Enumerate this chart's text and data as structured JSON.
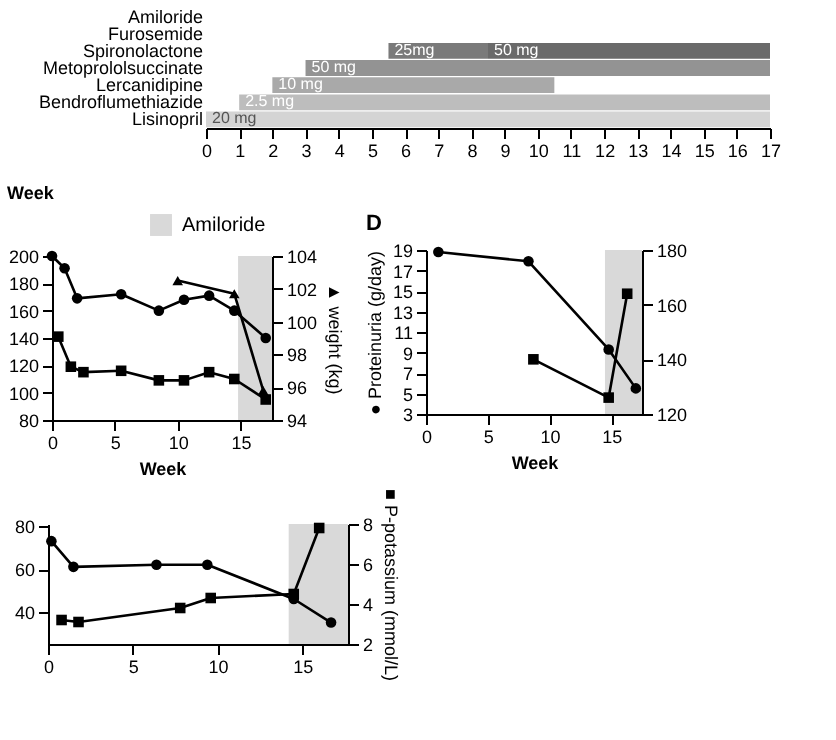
{
  "chart_data": [
    {
      "type": "bar",
      "orientation": "horizontal",
      "categories": [
        "Amiloride",
        "Furosemide",
        "Spironolactone",
        "Metoprololsuccinate",
        "Lercanidipine",
        "Bendroflumethiazide",
        "Lisinopril"
      ],
      "xlabel": "Week",
      "xlim": [
        0,
        17
      ],
      "xticks": [
        0,
        1,
        2,
        3,
        4,
        5,
        6,
        7,
        8,
        9,
        10,
        11,
        12,
        13,
        14,
        15,
        16,
        17
      ],
      "grid": false,
      "series": [
        {
          "values": [
            null,
            null,
            3,
            14,
            8.5,
            16,
            17
          ],
          "base": [
            null,
            null,
            5.5,
            3,
            2,
            1,
            0
          ],
          "colors": [
            null,
            null,
            "#7a7a7a",
            "#939393",
            "#a9a9a9",
            "#bdbdbd",
            "#d4d4d4"
          ]
        },
        {
          "values": [
            null,
            null,
            8.5,
            null,
            null,
            null,
            null
          ],
          "base": [
            null,
            null,
            8.5,
            null,
            null,
            null,
            null
          ],
          "color": "#6a6a6a"
        }
      ],
      "annotations": [
        {
          "text": "25mg",
          "x": 5.5,
          "y": "Spironolactone"
        },
        {
          "text": "50 mg",
          "x": 8.5,
          "y": "Spironolactone"
        },
        {
          "text": "50 mg",
          "x": 3,
          "y": "Metoprololsuccinate"
        },
        {
          "text": "10 mg",
          "x": 2,
          "y": "Lercanidipine"
        },
        {
          "text": "2.5 mg",
          "x": 1,
          "y": "Bendroflumethiazide"
        },
        {
          "text": "20 mg",
          "x": 0,
          "y": "Lisinopril"
        }
      ]
    },
    {
      "type": "line",
      "xlabel": "Week",
      "y2label": "▲ weight (kg)",
      "xlim": [
        0,
        17.5
      ],
      "xticks": [
        0,
        5,
        10,
        15
      ],
      "ylim": [
        80,
        200
      ],
      "yticks": [
        80,
        100,
        120,
        140,
        160,
        180,
        200
      ],
      "y2lim": [
        94,
        104
      ],
      "y2ticks": [
        94,
        96,
        98,
        100,
        102,
        104
      ],
      "grid": false,
      "legend": "top right",
      "bands": [
        {
          "axis": "x",
          "from": 14.8,
          "to": 17.5,
          "label": "Amiloride",
          "color": "#d9d9d9"
        }
      ],
      "series": [
        {
          "color": "#000000",
          "marker": "circle",
          "x": [
            0,
            1,
            2,
            5.5,
            8.5,
            10.5,
            12.5,
            14.5,
            17
          ],
          "values": [
            200,
            191,
            169,
            172,
            160,
            168,
            171,
            160,
            140
          ]
        },
        {
          "color": "#000000",
          "marker": "square",
          "x": [
            0.5,
            1.5,
            2.5,
            5.5,
            8.5,
            10.5,
            12.5,
            14.5,
            17
          ],
          "values": [
            141,
            119,
            115,
            116,
            109,
            109,
            115,
            110,
            95
          ]
        },
        {
          "color": "#000000",
          "marker": "triangle",
          "axis": "y2",
          "x": [
            10,
            14.5,
            16.8
          ],
          "values": [
            102.5,
            101.7,
            95.8
          ]
        }
      ]
    },
    {
      "type": "line",
      "title": "D",
      "xlabel": "Week",
      "ylabel": "● Proteinuria (g/day)",
      "xlim": [
        0,
        17.5
      ],
      "xticks": [
        0,
        5,
        10,
        15
      ],
      "ylim": [
        3,
        19
      ],
      "yticks": [
        3,
        5,
        7,
        9,
        11,
        13,
        15,
        17,
        19
      ],
      "y2lim": [
        120,
        180
      ],
      "y2ticks": [
        120,
        140,
        160,
        180
      ],
      "grid": false,
      "bands": [
        {
          "axis": "x",
          "from": 14.5,
          "to": 17.5,
          "color": "#d9d9d9"
        }
      ],
      "series": [
        {
          "color": "#000000",
          "marker": "circle",
          "x": [
            1,
            8.3,
            14.8,
            17
          ],
          "values": [
            18.8,
            17.9,
            9.3,
            5.5
          ]
        },
        {
          "color": "#000000",
          "marker": "square",
          "axis": "y2",
          "x": [
            8.7,
            14.8,
            16.3
          ],
          "values": [
            140,
            126,
            164
          ]
        }
      ]
    },
    {
      "type": "line",
      "y2label": "■ P-potassium (mmol/L)",
      "xlim": [
        0,
        17.7
      ],
      "xticks": [
        0,
        5,
        10,
        15
      ],
      "ylim": [
        25,
        81
      ],
      "yticks": [
        40,
        60,
        80
      ],
      "y2lim": [
        2,
        8
      ],
      "y2ticks": [
        2,
        4,
        6,
        8
      ],
      "grid": false,
      "bands": [
        {
          "axis": "x",
          "from": 14.2,
          "to": 17.7,
          "color": "#d9d9d9"
        }
      ],
      "series": [
        {
          "color": "#000000",
          "marker": "circle",
          "x": [
            0.2,
            1.5,
            6.4,
            9.4,
            14.5,
            16.7
          ],
          "values": [
            73,
            61,
            62,
            62,
            46,
            35
          ]
        },
        {
          "color": "#000000",
          "marker": "square",
          "axis": "y2",
          "x": [
            0.8,
            1.8,
            7.8,
            9.6,
            14.5,
            16
          ],
          "values": [
            3.2,
            3.1,
            3.8,
            4.3,
            4.5,
            7.8
          ]
        }
      ]
    }
  ]
}
